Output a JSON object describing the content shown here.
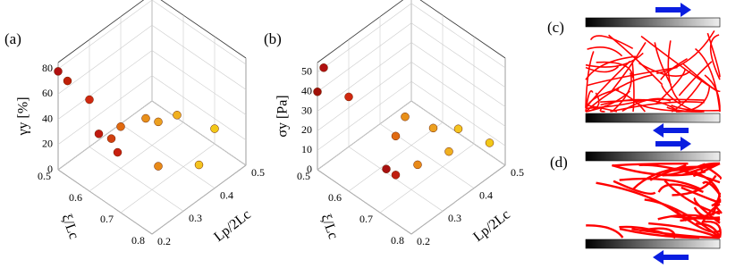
{
  "chart_data": [
    {
      "type": "scatter3d",
      "panel_label": "(a)",
      "zlabel": "γy [%]",
      "ylabel": "ξ/Lc",
      "xlabel": "Lp/2Lc",
      "xlim": [
        0.2,
        0.5
      ],
      "xticks": [
        0.2,
        0.3,
        0.4,
        0.5
      ],
      "ylim": [
        0.5,
        0.8
      ],
      "yticks": [
        0.5,
        0.6,
        0.7,
        0.8
      ],
      "zlim": [
        0,
        85
      ],
      "zticks": [
        0,
        20,
        40,
        60,
        80
      ],
      "grid": true,
      "x": [
        0.2,
        0.21,
        0.25,
        0.23,
        0.25,
        0.3,
        0.24,
        0.3,
        0.38,
        0.4,
        0.45,
        0.4,
        0.5
      ],
      "y": [
        0.5,
        0.52,
        0.55,
        0.6,
        0.62,
        0.6,
        0.65,
        0.72,
        0.6,
        0.62,
        0.63,
        0.75,
        0.7
      ],
      "z": [
        78,
        72,
        55,
        40,
        36,
        33,
        32,
        22,
        25,
        22,
        20,
        10,
        12
      ],
      "colors": [
        "#b01010",
        "#c02008",
        "#d02810",
        "#c01a10",
        "#d04010",
        "#e06a10",
        "#c82010",
        "#e88a18",
        "#e8901a",
        "#eca020",
        "#f0b020",
        "#f4c420",
        "#f2c818"
      ]
    },
    {
      "type": "scatter3d",
      "panel_label": "(b)",
      "zlabel": "σy [Pa]",
      "ylabel": "ξ/Lc",
      "xlabel": "Lp/2Lc",
      "xlim": [
        0.2,
        0.5
      ],
      "xticks": [
        0.2,
        0.3,
        0.4,
        0.5
      ],
      "ylim": [
        0.5,
        0.8
      ],
      "yticks": [
        0.5,
        0.6,
        0.7,
        0.8
      ],
      "zlim": [
        0,
        55
      ],
      "zticks": [
        0,
        10,
        20,
        30,
        40,
        50
      ],
      "grid": true,
      "x": [
        0.22,
        0.2,
        0.25,
        0.22,
        0.23,
        0.3,
        0.3,
        0.38,
        0.42,
        0.4,
        0.47,
        0.5
      ],
      "y": [
        0.5,
        0.5,
        0.55,
        0.7,
        0.72,
        0.65,
        0.72,
        0.6,
        0.65,
        0.72,
        0.68,
        0.75
      ],
      "z": [
        50,
        40,
        37,
        20,
        18,
        22,
        15,
        17,
        12,
        10,
        9,
        6
      ],
      "colors": [
        "#b01010",
        "#a01008",
        "#d02810",
        "#a81010",
        "#c02010",
        "#e06a10",
        "#e88a18",
        "#e8901a",
        "#eca020",
        "#f0b020",
        "#f4c420",
        "#f2c818"
      ]
    }
  ],
  "diagram_panels": [
    "(c)",
    "(d)"
  ]
}
